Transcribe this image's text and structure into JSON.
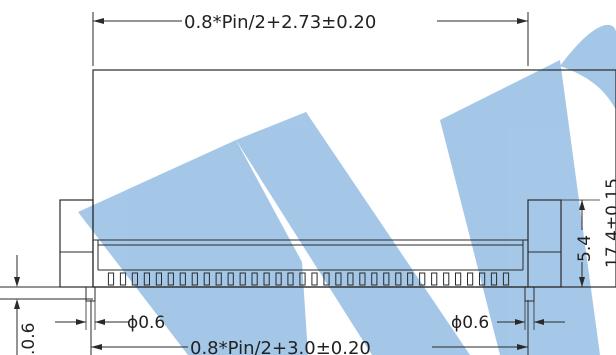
{
  "dimensions": {
    "top_width": "0.8*Pin/2+2.73±0.20",
    "bottom_width": "0.8*Pin/2+3.0±0.20",
    "hole_left": "ϕ0.6",
    "hole_right": "ϕ0.6",
    "pad_height": "5.4",
    "overall_height": "17.4±0.15",
    "edge_left": ".0.6"
  },
  "watermark": {
    "color": "#5b9bd5",
    "opacity": 0.55
  },
  "pin_count_drawn": 34
}
